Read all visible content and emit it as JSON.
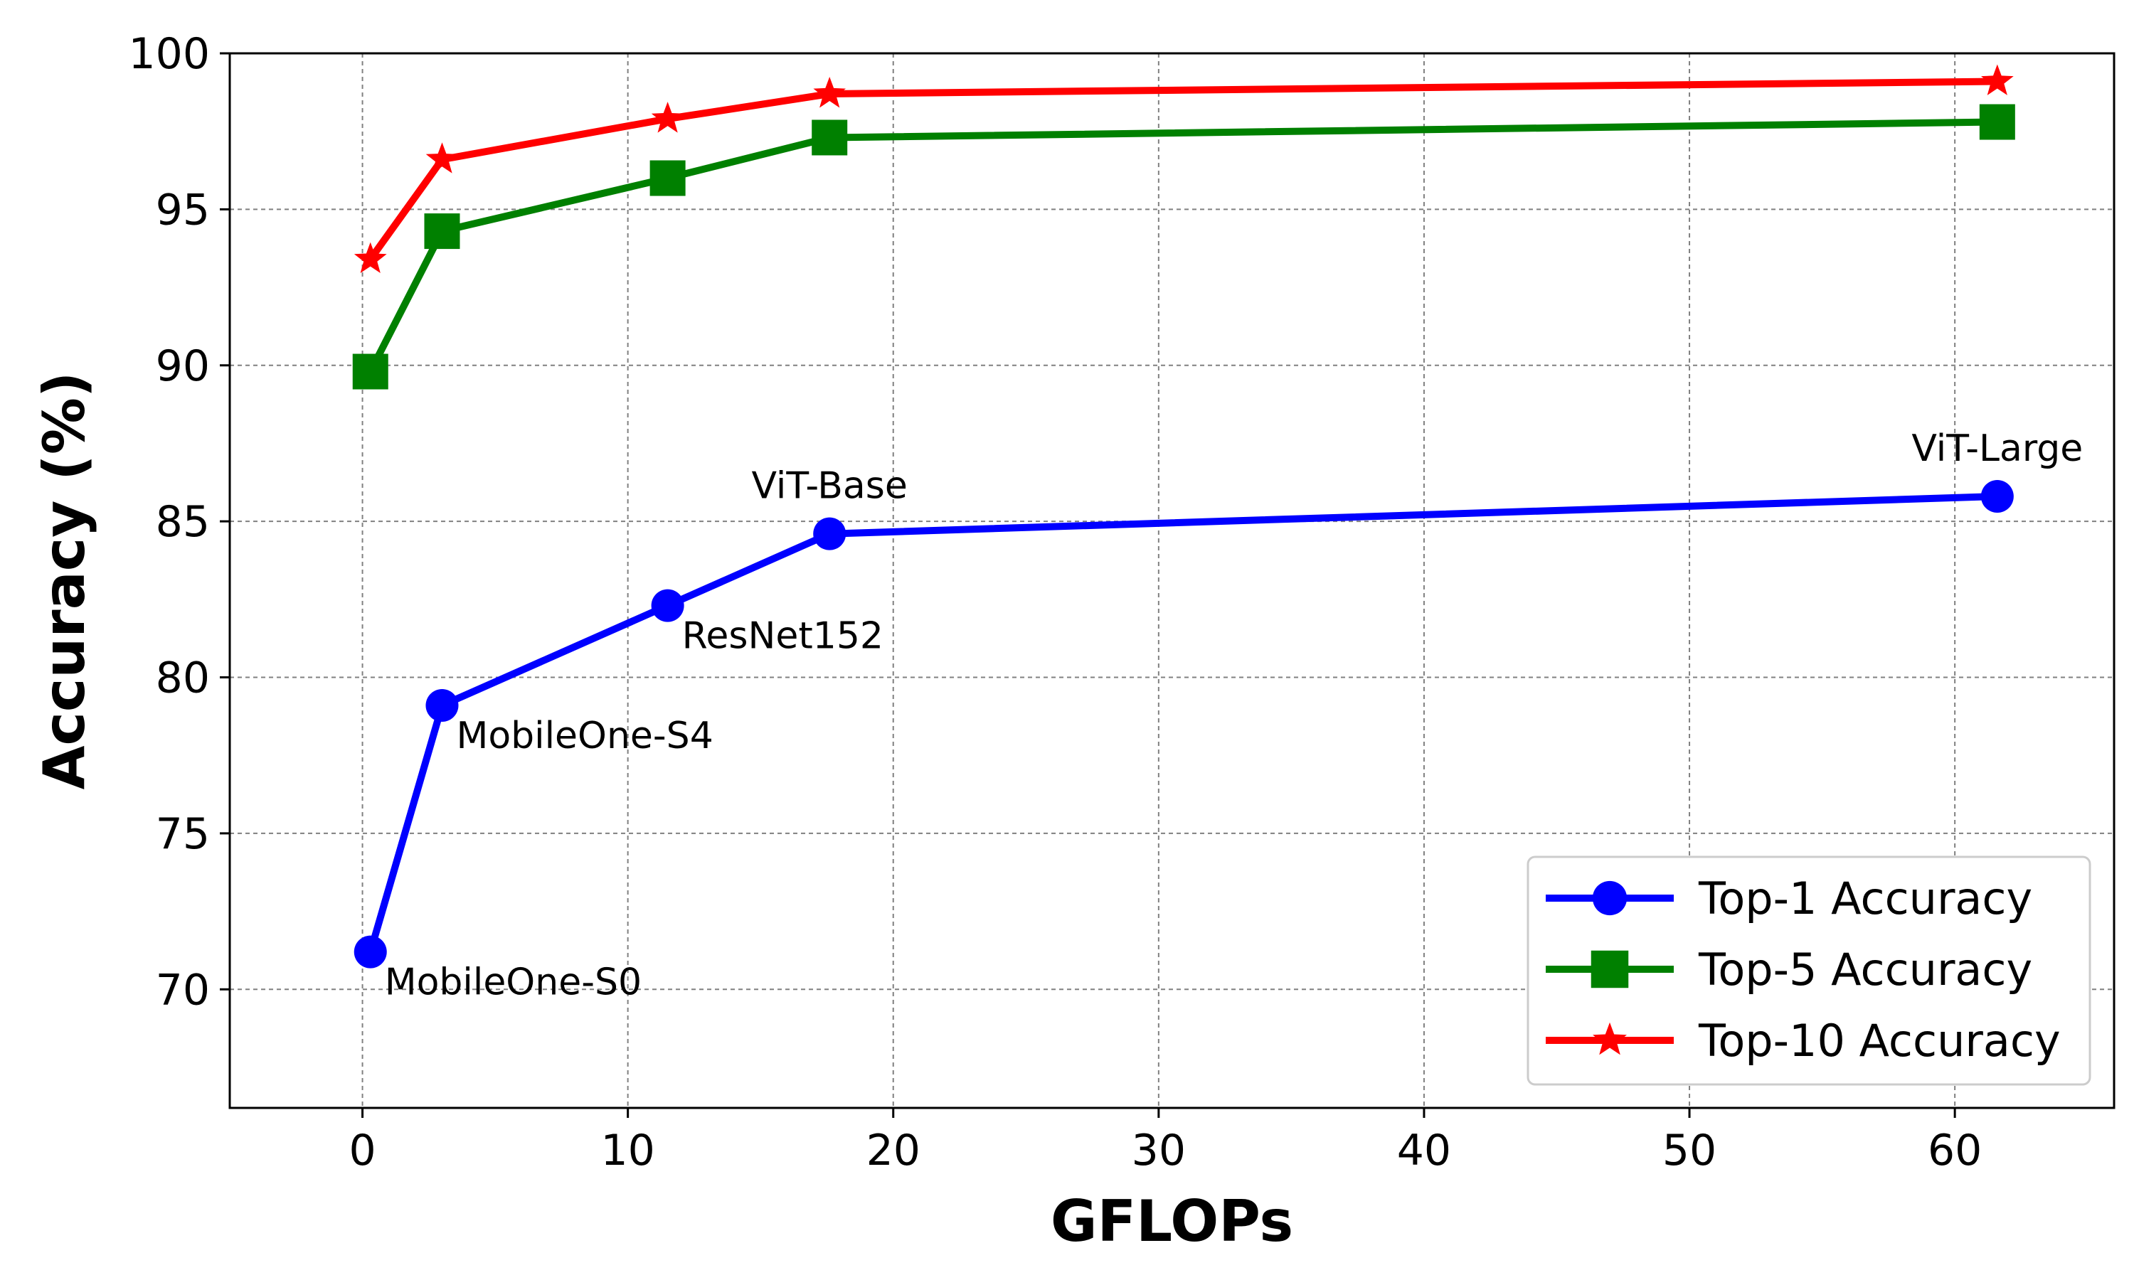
{
  "chart_data": {
    "type": "line",
    "title": "",
    "xlabel": "GFLOPs",
    "ylabel": "Accuracy (%)",
    "xlim": [
      -5,
      66
    ],
    "ylim": [
      66.2,
      100
    ],
    "xticks": [
      0,
      10,
      20,
      30,
      40,
      50,
      60
    ],
    "yticks": [
      70,
      75,
      80,
      85,
      90,
      95,
      100
    ],
    "grid": true,
    "legend_position": "lower-right",
    "series": [
      {
        "name": "Top-1 Accuracy",
        "color": "#0000ff",
        "marker": "circle",
        "x": [
          0.3,
          3.0,
          11.5,
          17.6,
          61.6
        ],
        "y": [
          71.2,
          79.1,
          82.3,
          84.6,
          85.8
        ]
      },
      {
        "name": "Top-5 Accuracy",
        "color": "#008000",
        "marker": "square",
        "x": [
          0.3,
          3.0,
          11.5,
          17.6,
          61.6
        ],
        "y": [
          89.8,
          94.3,
          96.0,
          97.3,
          97.8
        ]
      },
      {
        "name": "Top-10 Accuracy",
        "color": "#ff0000",
        "marker": "star",
        "x": [
          0.3,
          3.0,
          11.5,
          17.6,
          61.6
        ],
        "y": [
          93.4,
          96.6,
          97.9,
          98.7,
          99.1
        ]
      }
    ],
    "annotations": [
      {
        "text": "MobileOne-S0",
        "x": 0.3,
        "y": 71.2,
        "placement": "below-right"
      },
      {
        "text": "MobileOne-S4",
        "x": 3.0,
        "y": 79.1,
        "placement": "below-right"
      },
      {
        "text": "ResNet152",
        "x": 11.5,
        "y": 82.3,
        "placement": "below-right"
      },
      {
        "text": "ViT-Base",
        "x": 17.6,
        "y": 84.6,
        "placement": "above"
      },
      {
        "text": "ViT-Large",
        "x": 61.6,
        "y": 85.8,
        "placement": "above"
      }
    ]
  }
}
